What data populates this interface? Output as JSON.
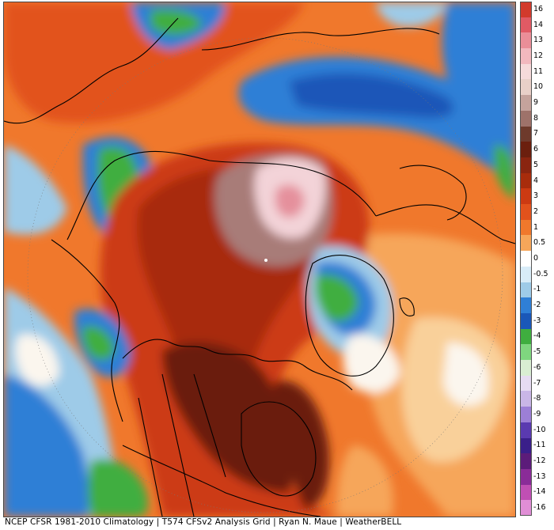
{
  "map": {
    "colors": {
      "dark_brown": "#6b1f0e",
      "red_brown": "#a82c0c",
      "red": "#cc3a12",
      "orange_red": "#e2521c",
      "orange": "#f0782c",
      "light_orange": "#f6a65a",
      "pale_orange": "#f9d09a",
      "near_white": "#fbf6ee",
      "light_blue": "#9ecbe8",
      "blue": "#2f7fd6",
      "dark_blue": "#1a57b8",
      "green": "#3fae3f",
      "pink_white": "#f3d3d8",
      "pink": "#e5909c",
      "mauve": "#a87b78"
    }
  },
  "colorbar": {
    "labels": [
      "16",
      "14",
      "13",
      "12",
      "11",
      "10",
      "9",
      "8",
      "7",
      "6",
      "5",
      "4",
      "3",
      "2",
      "1",
      "0.5",
      "0",
      "-0.5",
      "-1",
      "-2",
      "-3",
      "-4",
      "-5",
      "-6",
      "-7",
      "-8",
      "-9",
      "-10",
      "-11",
      "-12",
      "-13",
      "-14",
      "-16"
    ],
    "colors": [
      "#d23a2c",
      "#e05a64",
      "#ea8e98",
      "#f2b8be",
      "#f6dada",
      "#e9d0c8",
      "#c5a39c",
      "#9e726a",
      "#6e3a2c",
      "#6b1f0e",
      "#8a2510",
      "#a82c0c",
      "#cc3a12",
      "#e2521c",
      "#f0782c",
      "#f6a65a",
      "#ffffff",
      "#d8ecf8",
      "#9ecbe8",
      "#2f7fd6",
      "#1a57b8",
      "#3fae3f",
      "#7fd67f",
      "#d9eed2",
      "#e6dcf2",
      "#c9b6e6",
      "#9c7fd6",
      "#5a3ab0",
      "#3a1f8a",
      "#5c1c7a",
      "#8a2c98",
      "#c04fb4",
      "#e08ed6"
    ]
  },
  "footer": {
    "credit": "NCEP CFSR 1981-2010 Climatology | T574 CFSv2 Analysis Grid | Ryan N. Maue | WeatherBELL"
  }
}
